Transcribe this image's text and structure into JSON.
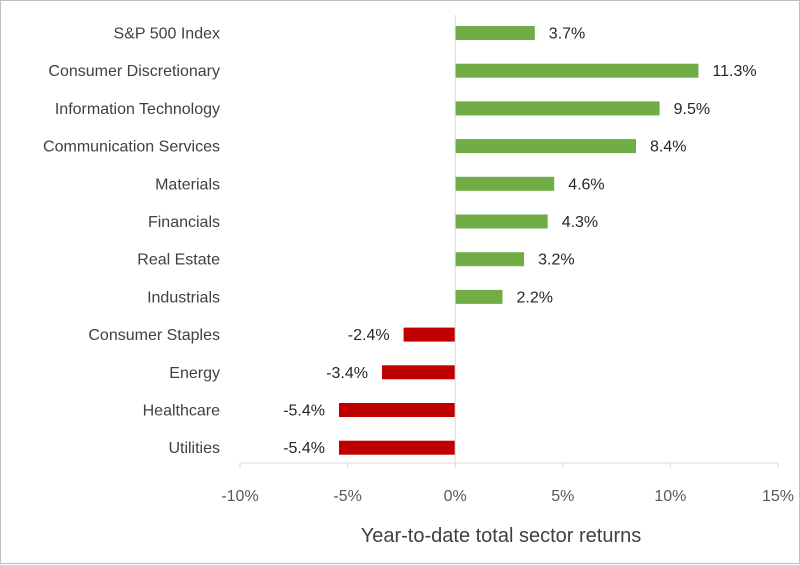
{
  "chart_data": {
    "type": "bar",
    "orientation": "horizontal",
    "categories": [
      "S&P 500 Index",
      "Consumer Discretionary",
      "Information Technology",
      "Communication Services",
      "Materials",
      "Financials",
      "Real Estate",
      "Industrials",
      "Consumer Staples",
      "Energy",
      "Healthcare",
      "Utilities"
    ],
    "values": [
      3.7,
      11.3,
      9.5,
      8.4,
      4.6,
      4.3,
      3.2,
      2.2,
      -2.4,
      -3.4,
      -5.4,
      -5.4
    ],
    "value_labels": [
      "3.7%",
      "11.3%",
      "9.5%",
      "8.4%",
      "4.6%",
      "4.3%",
      "3.2%",
      "2.2%",
      "-2.4%",
      "-3.4%",
      "-5.4%",
      "-5.4%"
    ],
    "xlabel": "Year-to-date total sector returns",
    "xlim": [
      -10,
      15
    ],
    "xticks": [
      -10,
      -5,
      0,
      5,
      10,
      15
    ],
    "xtick_labels": [
      "-10%",
      "-5%",
      "0%",
      "5%",
      "10%",
      "15%"
    ],
    "grid": false,
    "legend": "none",
    "colors": {
      "positive": "#70ad47",
      "negative": "#c00000"
    }
  }
}
